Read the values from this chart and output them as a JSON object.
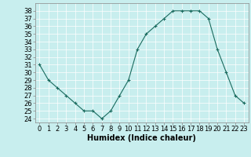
{
  "x": [
    0,
    1,
    2,
    3,
    4,
    5,
    6,
    7,
    8,
    9,
    10,
    11,
    12,
    13,
    14,
    15,
    16,
    17,
    18,
    19,
    20,
    21,
    22,
    23
  ],
  "y": [
    31,
    29,
    28,
    27,
    26,
    25,
    25,
    24,
    25,
    27,
    29,
    33,
    35,
    36,
    37,
    38,
    38,
    38,
    38,
    37,
    33,
    30,
    27,
    26
  ],
  "line_color": "#1a6b5e",
  "marker": "+",
  "bg_color": "#c8eeee",
  "grid_color": "#ffffff",
  "xlabel": "Humidex (Indice chaleur)",
  "ylabel_ticks": [
    24,
    25,
    26,
    27,
    28,
    29,
    30,
    31,
    32,
    33,
    34,
    35,
    36,
    37,
    38
  ],
  "ylim": [
    23.5,
    39
  ],
  "xlim": [
    -0.5,
    23.5
  ],
  "xlabel_fontsize": 7,
  "tick_fontsize": 6
}
